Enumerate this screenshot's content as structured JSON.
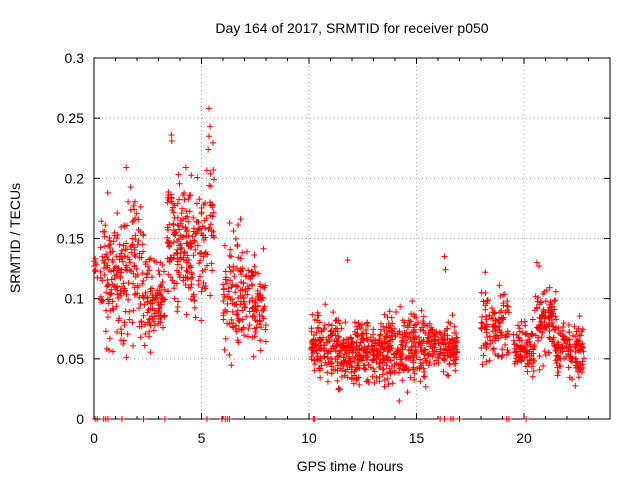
{
  "chart_data": {
    "type": "scatter",
    "title": "Day 164 of 2017, SRMTID for receiver p050",
    "xlabel": "GPS time / hours",
    "ylabel": "SRMTID / TECUs",
    "xlim": [
      0,
      24
    ],
    "ylim": [
      0,
      0.3
    ],
    "x_ticks": [
      0,
      5,
      10,
      15,
      20
    ],
    "x_tick_labels": [
      "0",
      "5",
      "10",
      "15",
      "20"
    ],
    "y_ticks": [
      0,
      0.05,
      0.1,
      0.15,
      0.2,
      0.25,
      0.3
    ],
    "y_tick_labels": [
      "0",
      "0.05",
      "0.1",
      "0.15",
      "0.2",
      "0.25",
      "0.3"
    ],
    "grid": true,
    "marker": "+",
    "color": "#ff0000",
    "series": [
      {
        "name": "SRMTID",
        "note": "approximate clusters; seeded pseudo-random points generated within each cluster",
        "clusters": [
          {
            "x0": 0.0,
            "x1": 0.2,
            "ymin": 0.11,
            "ymax": 0.14,
            "count": 8
          },
          {
            "x0": 0.3,
            "x1": 1.3,
            "ymin": 0.04,
            "ymax": 0.2,
            "count": 110
          },
          {
            "x0": 1.3,
            "x1": 2.3,
            "ymin": 0.04,
            "ymax": 0.21,
            "count": 100
          },
          {
            "x0": 2.3,
            "x1": 3.3,
            "ymin": 0.05,
            "ymax": 0.15,
            "count": 100
          },
          {
            "x0": 3.4,
            "x1": 4.3,
            "ymin": 0.07,
            "ymax": 0.23,
            "count": 110
          },
          {
            "x0": 4.3,
            "x1": 5.2,
            "ymin": 0.06,
            "ymax": 0.22,
            "count": 100
          },
          {
            "x0": 5.2,
            "x1": 5.6,
            "ymin": 0.09,
            "ymax": 0.26,
            "count": 30
          },
          {
            "x0": 6.0,
            "x1": 6.9,
            "ymin": 0.03,
            "ymax": 0.18,
            "count": 90
          },
          {
            "x0": 6.9,
            "x1": 8.0,
            "ymin": 0.04,
            "ymax": 0.15,
            "count": 100
          },
          {
            "x0": 10.1,
            "x1": 11.5,
            "ymin": 0.02,
            "ymax": 0.1,
            "count": 150
          },
          {
            "x0": 11.5,
            "x1": 13.5,
            "ymin": 0.02,
            "ymax": 0.09,
            "count": 220
          },
          {
            "x0": 13.5,
            "x1": 15.5,
            "ymin": 0.015,
            "ymax": 0.1,
            "count": 220
          },
          {
            "x0": 15.5,
            "x1": 16.9,
            "ymin": 0.03,
            "ymax": 0.09,
            "count": 140
          },
          {
            "x0": 18.0,
            "x1": 19.3,
            "ymin": 0.03,
            "ymax": 0.12,
            "count": 110
          },
          {
            "x0": 19.5,
            "x1": 20.5,
            "ymin": 0.03,
            "ymax": 0.09,
            "count": 90
          },
          {
            "x0": 20.5,
            "x1": 21.5,
            "ymin": 0.03,
            "ymax": 0.13,
            "count": 100
          },
          {
            "x0": 21.5,
            "x1": 22.8,
            "ymin": 0.02,
            "ymax": 0.09,
            "count": 120
          }
        ],
        "special_points": [
          {
            "x": 5.35,
            "y": 0.258
          },
          {
            "x": 5.4,
            "y": 0.243
          },
          {
            "x": 5.35,
            "y": 0.235
          },
          {
            "x": 3.6,
            "y": 0.236
          },
          {
            "x": 3.62,
            "y": 0.231
          },
          {
            "x": 1.5,
            "y": 0.209
          },
          {
            "x": 16.3,
            "y": 0.135
          },
          {
            "x": 16.35,
            "y": 0.124
          },
          {
            "x": 11.8,
            "y": 0.132
          },
          {
            "x": 20.6,
            "y": 0.13
          },
          {
            "x": 20.7,
            "y": 0.127
          },
          {
            "x": 18.2,
            "y": 0.122
          },
          {
            "x": 14.2,
            "y": 0.015
          },
          {
            "x": 14.8,
            "y": 0.098
          }
        ],
        "zero_points": [
          0.05,
          0.15,
          0.45,
          0.55,
          0.65,
          1.3,
          2.3,
          3.3,
          5.25,
          5.95,
          6.1,
          6.2,
          6.3,
          10.2,
          10.25,
          16.1,
          16.3,
          16.6,
          16.7,
          17.0,
          19.2,
          19.3,
          20.1
        ]
      }
    ]
  }
}
